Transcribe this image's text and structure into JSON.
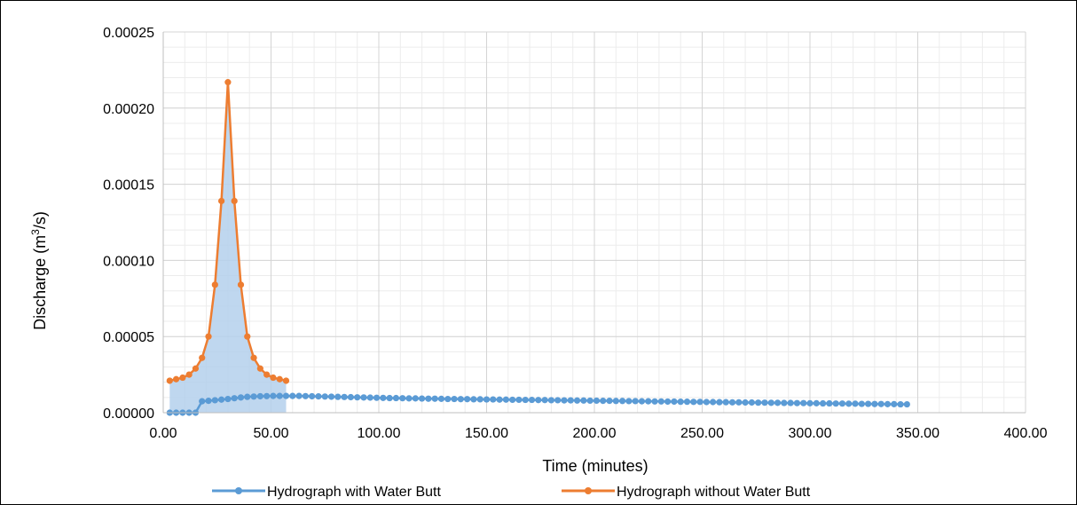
{
  "chart_data": {
    "type": "line",
    "title": "",
    "xlabel": "Time (minutes)",
    "ylabel_main": "Discharge (m",
    "ylabel_sup": "3",
    "ylabel_tail": "/s)",
    "xlim": [
      0,
      400
    ],
    "ylim": [
      0,
      0.00025
    ],
    "xticks": [
      "0.00",
      "50.00",
      "100.00",
      "150.00",
      "200.00",
      "250.00",
      "300.00",
      "350.00",
      "400.00"
    ],
    "yticks": [
      "0.00000",
      "0.00005",
      "0.00010",
      "0.00015",
      "0.00020",
      "0.00025"
    ],
    "grid": true,
    "legend_position": "bottom",
    "colors": {
      "with": "#5B9BD5",
      "without": "#ED7D31",
      "fill": "#B4D0EC"
    },
    "series": [
      {
        "name": "Hydrograph with Water Butt",
        "color": "#5B9BD5",
        "x_start": 3,
        "x_step": 3,
        "y": [
          0,
          0,
          0,
          0,
          0,
          7.5e-06,
          7.8e-06,
          8.2e-06,
          8.6e-06,
          9e-06,
          9.5e-06,
          1e-05,
          1.04e-05,
          1.06e-05,
          1.08e-05,
          1.09e-05,
          1.1e-05,
          1.1e-05,
          1.1e-05,
          1.1e-05,
          1.1e-05,
          1.09e-05,
          1.08e-05,
          1.07e-05,
          1.06e-05,
          1.05e-05,
          1.04e-05,
          1.03e-05,
          1.02e-05,
          1.01e-05,
          1e-05,
          9.9e-06,
          9.8e-06,
          9.7e-06,
          9.6e-06,
          9.6e-06,
          9.5e-06,
          9.4e-06,
          9.4e-06,
          9.3e-06,
          9.2e-06,
          9.2e-06,
          9.1e-06,
          9e-06,
          9e-06,
          8.9e-06,
          8.9e-06,
          8.8e-06,
          8.8e-06,
          8.7e-06,
          8.7e-06,
          8.6e-06,
          8.6e-06,
          8.5e-06,
          8.5e-06,
          8.4e-06,
          8.4e-06,
          8.3e-06,
          8.3e-06,
          8.2e-06,
          8.2e-06,
          8.1e-06,
          8.1e-06,
          8e-06,
          8e-06,
          7.9e-06,
          7.9e-06,
          7.8e-06,
          7.8e-06,
          7.7e-06,
          7.7e-06,
          7.6e-06,
          7.6e-06,
          7.5e-06,
          7.5e-06,
          7.4e-06,
          7.4e-06,
          7.3e-06,
          7.3e-06,
          7.2e-06,
          7.2e-06,
          7.1e-06,
          7.1e-06,
          7e-06,
          7e-06,
          6.9e-06,
          6.9e-06,
          6.8e-06,
          6.8e-06,
          6.7e-06,
          6.7e-06,
          6.6e-06,
          6.6e-06,
          6.5e-06,
          6.5e-06,
          6.4e-06,
          6.4e-06,
          6.3e-06,
          6.3e-06,
          6.2e-06,
          6.2e-06,
          6.1e-06,
          6.1e-06,
          6e-06,
          6e-06,
          5.9e-06,
          5.9e-06,
          5.8e-06,
          5.8e-06,
          5.7e-06,
          5.7e-06,
          5.6e-06,
          5.6e-06,
          5.5e-06,
          5.5e-06
        ]
      },
      {
        "name": "Hydrograph without Water Butt",
        "color": "#ED7D31",
        "x": [
          3,
          6,
          9,
          12,
          15,
          18,
          21,
          24,
          27,
          30,
          33,
          36,
          39,
          42,
          45,
          48,
          51,
          54,
          57
        ],
        "y": [
          2.1e-05,
          2.2e-05,
          2.3e-05,
          2.5e-05,
          2.9e-05,
          3.6e-05,
          5e-05,
          8.4e-05,
          0.000139,
          0.000217,
          0.000139,
          8.4e-05,
          5e-05,
          3.6e-05,
          2.9e-05,
          2.5e-05,
          2.3e-05,
          2.2e-05,
          2.1e-05
        ]
      }
    ]
  }
}
